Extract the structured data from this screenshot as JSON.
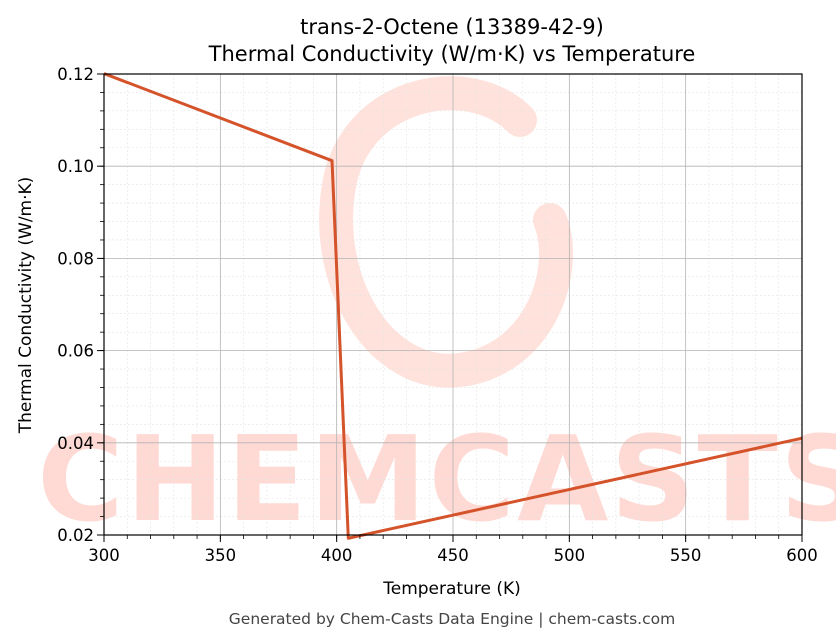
{
  "chart_data": {
    "type": "line",
    "title": "trans-2-Octene (13389-42-9)",
    "subtitle": "Thermal Conductivity (W/m·K) vs Temperature",
    "xlabel": "Temperature (K)",
    "ylabel": "Thermal Conductivity (W/m·K)",
    "xlim": [
      300,
      600
    ],
    "ylim": [
      0.02,
      0.12
    ],
    "xticks": [
      "300",
      "350",
      "400",
      "450",
      "500",
      "550",
      "600"
    ],
    "yticks": [
      "0.02",
      "0.04",
      "0.06",
      "0.08",
      "0.10",
      "0.12"
    ],
    "grid": true,
    "series": [
      {
        "color": "#d4532a",
        "x": [
          300,
          398,
          405,
          600
        ],
        "y": [
          0.1201,
          0.1012,
          0.0193,
          0.041
        ]
      }
    ],
    "watermark": "CHEMCASTS",
    "footer": "Generated by Chem-Casts Data Engine | chem-casts.com"
  }
}
